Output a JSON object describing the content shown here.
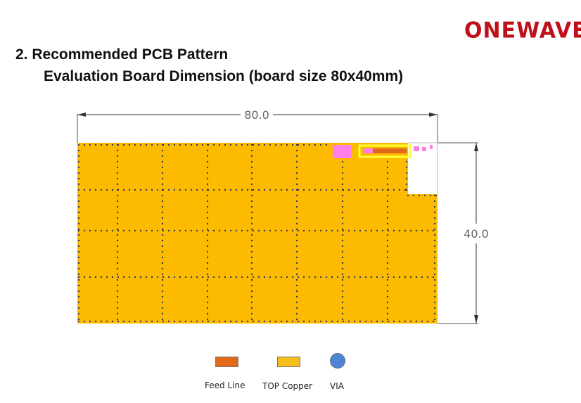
{
  "brand": {
    "logo_text": "ONEWAVE"
  },
  "section": {
    "number_title": "2.  Recommended PCB Pattern",
    "subtitle": "Evaluation Board Dimension (board size 80x40mm)"
  },
  "drawing": {
    "width_label": "80.0",
    "height_label": "40.0",
    "board_width_mm": 80.0,
    "board_height_mm": 40.0
  },
  "legend": [
    {
      "label": "Feed Line",
      "kind": "rect",
      "color": "#e06a1a"
    },
    {
      "label": "TOP Copper",
      "kind": "rect",
      "color": "#f6be1a"
    },
    {
      "label": "VIA",
      "kind": "circle",
      "color": "#4f84d4"
    }
  ],
  "colors": {
    "copper": "#fcbb00",
    "feed_line": "#e06a1a",
    "pad_pink": "#ff7fe8",
    "highlight_yellow": "#ffff33",
    "via_dot": "#3a3a5a",
    "logo_red": "#c0101a"
  }
}
